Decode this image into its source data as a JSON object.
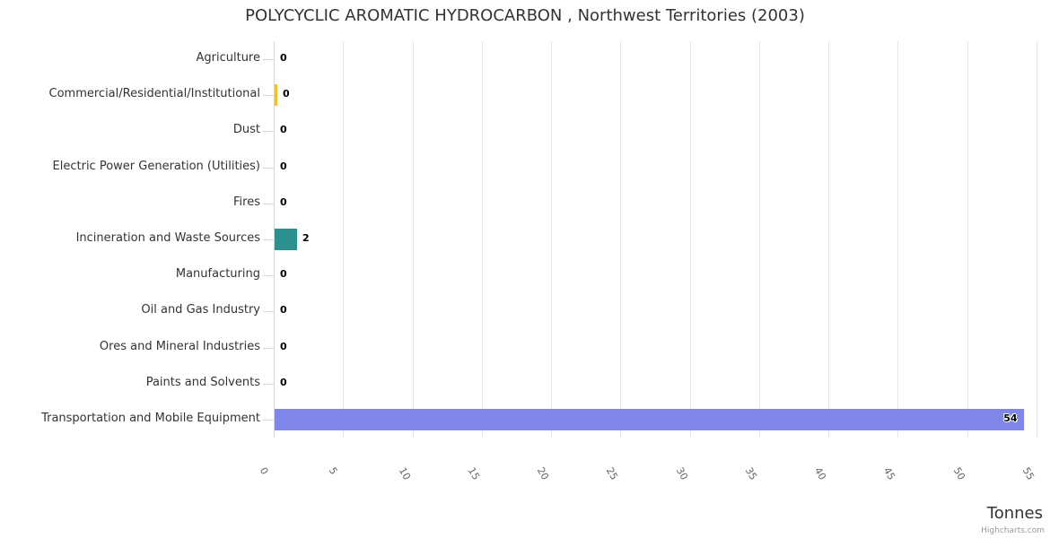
{
  "title": "POLYCYCLIC AROMATIC HYDROCARBON , Northwest Territories (2003)",
  "credit": "Highcharts.com",
  "axis": {
    "title": "Tonnes"
  },
  "colors": {
    "text": "#333333",
    "tick_text": "#666666",
    "grid": "#e6e6e6",
    "axis_line": "#ccd6eb",
    "credit_text": "#999999",
    "bar_yellow": "#edc232",
    "bar_teal": "#2b908f",
    "bar_purple": "#8085e9"
  },
  "chart_data": {
    "type": "bar",
    "orientation": "horizontal",
    "title": "POLYCYCLIC AROMATIC HYDROCARBON , Northwest Territories (2003)",
    "categories": [
      "Agriculture",
      "Commercial/Residential/Institutional",
      "Dust",
      "Electric Power Generation (Utilities)",
      "Fires",
      "Incineration and Waste Sources",
      "Manufacturing",
      "Oil and Gas Industry",
      "Ores and Mineral Industries",
      "Paints and Solvents",
      "Transportation and Mobile Equipment"
    ],
    "values": [
      0,
      0,
      0,
      0,
      0,
      2,
      0,
      0,
      0,
      0,
      54
    ],
    "value_labels": [
      "0",
      "0",
      "0",
      "0",
      "0",
      "2",
      "0",
      "0",
      "0",
      "0",
      "54"
    ],
    "bar_lengths_estimated": [
      0,
      0.2,
      0,
      0,
      0,
      1.6,
      0,
      0,
      0,
      0,
      54
    ],
    "point_colors": [
      null,
      "#edc232",
      null,
      null,
      null,
      "#2b908f",
      null,
      null,
      null,
      null,
      "#8085e9"
    ],
    "xlabel": "Tonnes",
    "ylabel": "",
    "xlim": [
      0,
      55
    ],
    "x_ticks": [
      0,
      5,
      10,
      15,
      20,
      25,
      30,
      35,
      40,
      45,
      50,
      55
    ],
    "grid": true,
    "legend": false
  }
}
